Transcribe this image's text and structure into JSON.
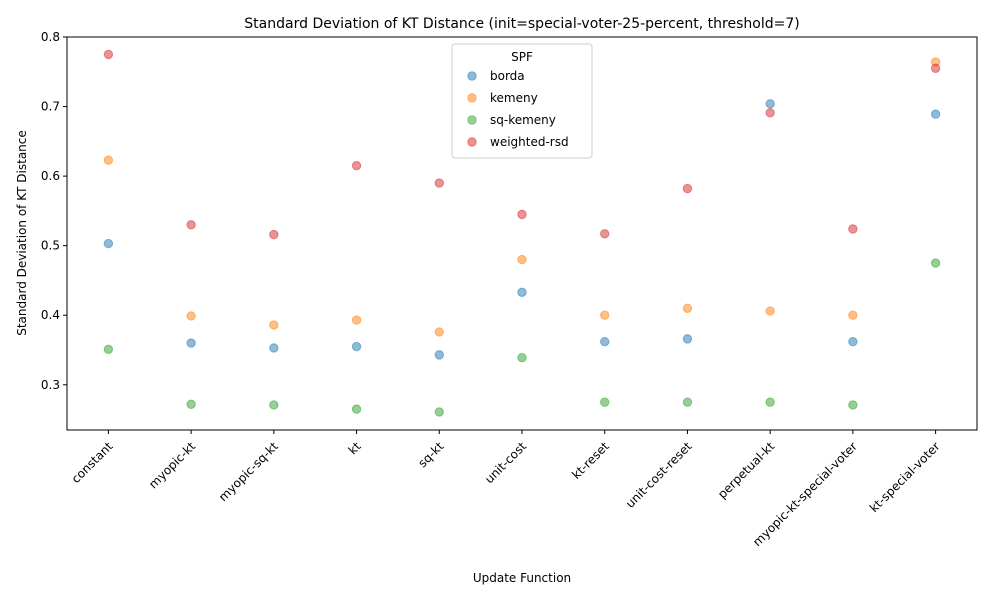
{
  "chart_data": {
    "type": "scatter",
    "title": "Standard Deviation of KT Distance (init=special-voter-25-percent, threshold=7)",
    "xlabel": "Update Function",
    "ylabel": "Standard Deviation of KT Distance",
    "categories": [
      "constant",
      "myopic-kt",
      "myopic-sq-kt",
      "kt",
      "sq-kt",
      "unit-cost",
      "kt-reset",
      "unit-cost-reset",
      "perpetual-kt",
      "myopic-kt-special-voter",
      "kt-special-voter"
    ],
    "ylim": [
      0.235,
      0.8
    ],
    "yticks": [
      0.3,
      0.4,
      0.5,
      0.6,
      0.7,
      0.8
    ],
    "ytick_labels": [
      "0.3",
      "0.4",
      "0.5",
      "0.6",
      "0.7",
      "0.8"
    ],
    "legend_title": "SPF",
    "legend_position": "top-center",
    "grid": false,
    "series": [
      {
        "name": "borda",
        "color": "#1f77b4",
        "values": [
          0.503,
          0.36,
          0.353,
          0.355,
          0.343,
          0.433,
          0.362,
          0.366,
          0.704,
          0.362,
          0.689
        ]
      },
      {
        "name": "kemeny",
        "color": "#ff7f0e",
        "values": [
          0.623,
          0.399,
          0.386,
          0.393,
          0.376,
          0.48,
          0.4,
          0.41,
          0.406,
          0.4,
          0.764
        ]
      },
      {
        "name": "sq-kemeny",
        "color": "#2ca02c",
        "values": [
          0.351,
          0.272,
          0.271,
          0.265,
          0.261,
          0.339,
          0.275,
          0.275,
          0.275,
          0.271,
          0.475
        ]
      },
      {
        "name": "weighted-rsd",
        "color": "#d62728",
        "values": [
          0.775,
          0.53,
          0.516,
          0.615,
          0.59,
          0.545,
          0.517,
          0.582,
          0.691,
          0.524,
          0.755
        ]
      }
    ]
  }
}
